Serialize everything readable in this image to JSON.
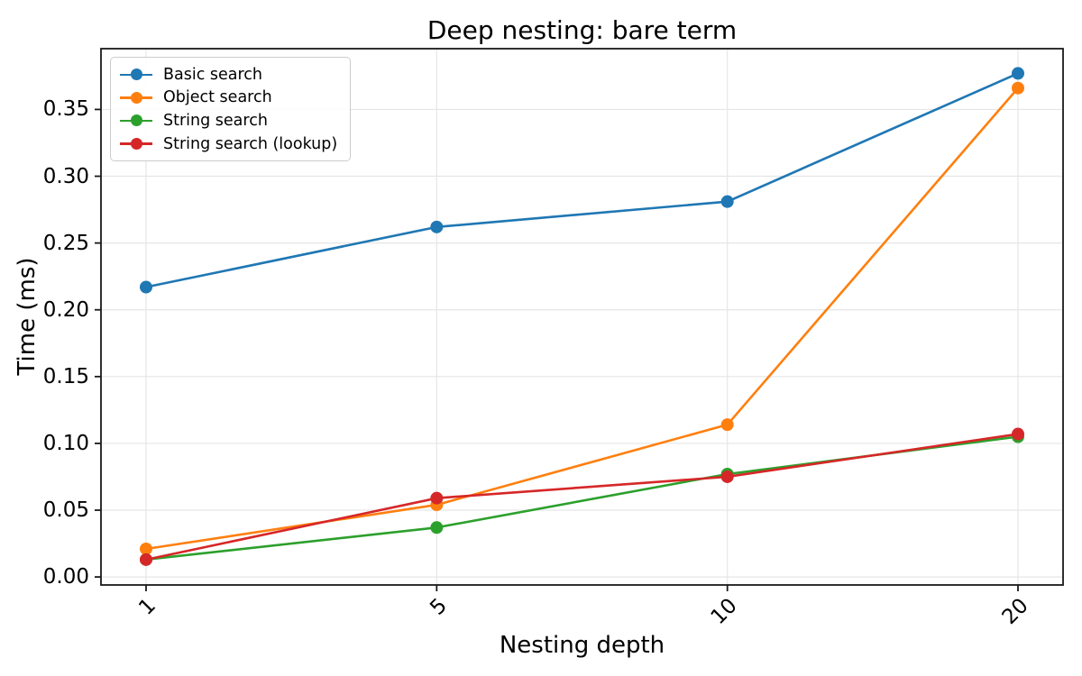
{
  "chart_data": {
    "type": "line",
    "title": "Deep nesting: bare term",
    "xlabel": "Nesting depth",
    "ylabel": "Time (ms)",
    "categories": [
      "1",
      "5",
      "10",
      "20"
    ],
    "series": [
      {
        "name": "Basic search",
        "color": "#1f77b4",
        "values": [
          0.217,
          0.262,
          0.281,
          0.377
        ]
      },
      {
        "name": "Object search",
        "color": "#ff7f0e",
        "values": [
          0.021,
          0.054,
          0.114,
          0.366
        ]
      },
      {
        "name": "String search",
        "color": "#2ca02c",
        "values": [
          0.013,
          0.037,
          0.077,
          0.105
        ]
      },
      {
        "name": "String search (lookup)",
        "color": "#d62728",
        "values": [
          0.013,
          0.059,
          0.075,
          0.107
        ]
      }
    ],
    "y_ticks": [
      "0.00",
      "0.05",
      "0.10",
      "0.15",
      "0.20",
      "0.25",
      "0.30",
      "0.35"
    ],
    "ylim": [
      -0.006,
      0.3955
    ],
    "grid": true,
    "grid_color": "#e6e6e6",
    "spine_color": "#1a1a1a",
    "legend_position": "upper left",
    "marker": "circle"
  }
}
